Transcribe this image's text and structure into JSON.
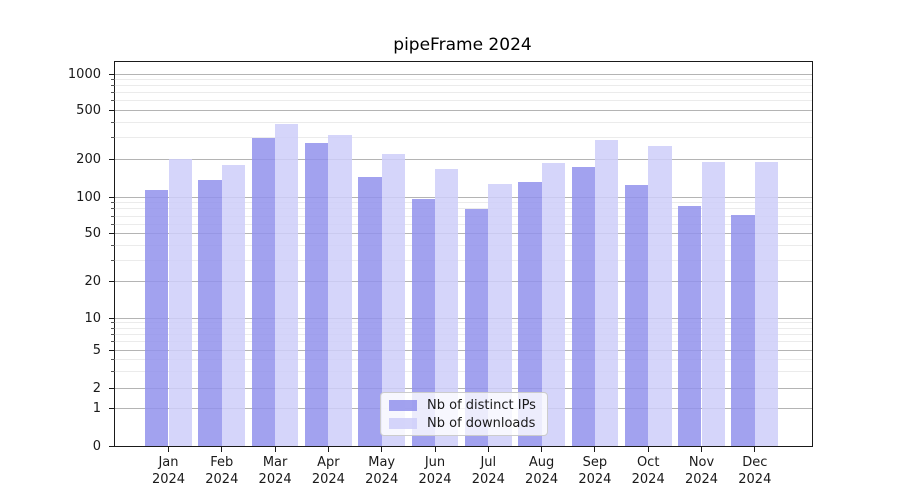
{
  "figure": {
    "background": "#ffffff"
  },
  "chart_data": {
    "type": "bar",
    "title": "pipeFrame 2024",
    "categories": [
      "Jan",
      "Feb",
      "Mar",
      "Apr",
      "May",
      "Jun",
      "Jul",
      "Aug",
      "Sep",
      "Oct",
      "Nov",
      "Dec"
    ],
    "category_sublabel": "2024",
    "series": [
      {
        "name": "Nb of distinct IPs",
        "color": "rgba(146,146,236,0.85)",
        "values": [
          113,
          137,
          300,
          272,
          144,
          96,
          80,
          131,
          173,
          125,
          84,
          72
        ]
      },
      {
        "name": "Nb of downloads",
        "color": "rgba(206,206,249,0.85)",
        "values": [
          203,
          180,
          390,
          318,
          221,
          167,
          126,
          188,
          287,
          256,
          190,
          189
        ]
      }
    ],
    "yscale": "symlog",
    "yticks": [
      0,
      1,
      2,
      5,
      10,
      20,
      50,
      100,
      200,
      500,
      1000
    ],
    "minor_yticks": [
      3,
      4,
      6,
      7,
      8,
      9,
      30,
      40,
      60,
      70,
      80,
      90,
      300,
      400,
      600,
      700,
      800,
      900
    ],
    "ylim": [
      0,
      1260
    ],
    "xlabel": "",
    "ylabel": "",
    "grid": true,
    "legend_position": "lower center"
  },
  "colors": {
    "major_grid": "#b4b4b4",
    "minor_grid": "#ebebeb",
    "spine": "#1a1a1a",
    "text": "#1a1a1a"
  }
}
